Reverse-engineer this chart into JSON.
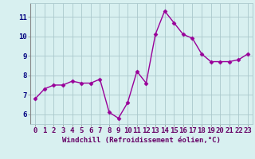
{
  "x": [
    0,
    1,
    2,
    3,
    4,
    5,
    6,
    7,
    8,
    9,
    10,
    11,
    12,
    13,
    14,
    15,
    16,
    17,
    18,
    19,
    20,
    21,
    22,
    23
  ],
  "y": [
    6.8,
    7.3,
    7.5,
    7.5,
    7.7,
    7.6,
    7.6,
    7.8,
    6.1,
    5.8,
    6.6,
    8.2,
    7.6,
    10.1,
    11.3,
    10.7,
    10.1,
    9.9,
    9.1,
    8.7,
    8.7,
    8.7,
    8.8,
    9.1
  ],
  "line_color": "#990099",
  "marker": "D",
  "marker_size": 2.5,
  "line_width": 1.0,
  "bg_color": "#d8f0f0",
  "grid_color": "#aac8cc",
  "xlabel": "Windchill (Refroidissement éolien,°C)",
  "xlabel_color": "#660066",
  "xlabel_fontsize": 6.5,
  "tick_label_color": "#660066",
  "ytick_label_color": "#000080",
  "tick_fontsize": 6.5,
  "ylim": [
    5.5,
    11.7
  ],
  "yticks": [
    6,
    7,
    8,
    9,
    10,
    11
  ],
  "xticks": [
    0,
    1,
    2,
    3,
    4,
    5,
    6,
    7,
    8,
    9,
    10,
    11,
    12,
    13,
    14,
    15,
    16,
    17,
    18,
    19,
    20,
    21,
    22,
    23
  ],
  "xtick_labels": [
    "0",
    "1",
    "2",
    "3",
    "4",
    "5",
    "6",
    "7",
    "8",
    "9",
    "10",
    "11",
    "12",
    "13",
    "14",
    "15",
    "16",
    "17",
    "18",
    "19",
    "20",
    "21",
    "22",
    "23"
  ],
  "xlim": [
    -0.5,
    23.5
  ]
}
